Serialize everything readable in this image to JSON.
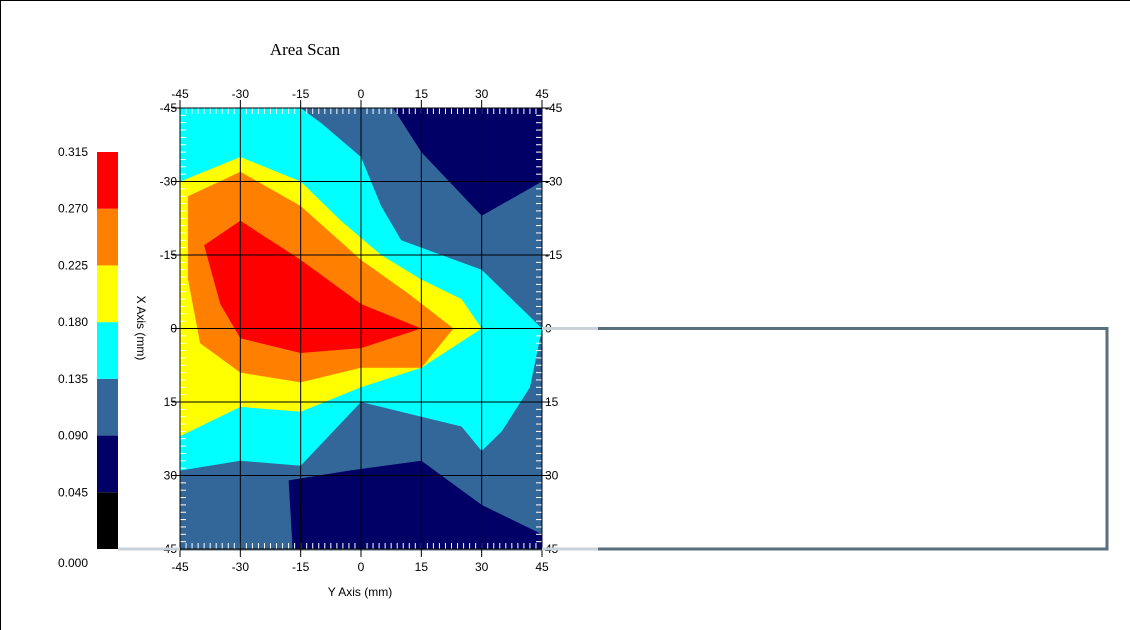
{
  "chart_data": {
    "type": "heatmap",
    "subtype": "filled-contour",
    "title": "Area Scan",
    "xlabel": "Y Axis (mm)",
    "ylabel": "X Axis (mm)",
    "x_ticks": [
      -45,
      -30,
      -15,
      0,
      15,
      30,
      45
    ],
    "y_ticks": [
      -45,
      -30,
      -15,
      0,
      15,
      30,
      45
    ],
    "x_tick_labels": [
      "-45",
      "-30",
      "-15",
      "0",
      "15",
      "30",
      "45"
    ],
    "y_tick_labels": [
      "-45",
      "-30",
      "-15",
      "0",
      "15",
      "30",
      "45"
    ],
    "xlim": [
      -45,
      45
    ],
    "ylim": [
      -45,
      45
    ],
    "y_inverted": true,
    "grid": true,
    "legend": {
      "position": "left",
      "levels": [
        "0.000",
        "0.045",
        "0.090",
        "0.135",
        "0.180",
        "0.225",
        "0.270",
        "0.315"
      ],
      "colors": [
        "#000000",
        "#000066",
        "#336699",
        "#00ffff",
        "#ffff00",
        "#ff8000",
        "#ff0000"
      ]
    },
    "bands": [
      {
        "range": [
          0.0,
          0.045
        ],
        "color": "#000000"
      },
      {
        "range": [
          0.045,
          0.09
        ],
        "color": "#000066"
      },
      {
        "range": [
          0.09,
          0.135
        ],
        "color": "#336699"
      },
      {
        "range": [
          0.135,
          0.18
        ],
        "color": "#00ffff"
      },
      {
        "range": [
          0.18,
          0.225
        ],
        "color": "#ffff00"
      },
      {
        "range": [
          0.225,
          0.27
        ],
        "color": "#ff8000"
      },
      {
        "range": [
          0.27,
          0.315
        ],
        "color": "#ff0000"
      }
    ],
    "regions": [
      {
        "level": "0.090-0.135",
        "color": "#336699",
        "polygon": [
          [
            -45,
            -45
          ],
          [
            45,
            -45
          ],
          [
            45,
            45
          ],
          [
            -45,
            45
          ]
        ]
      },
      {
        "level": "0.045-0.090",
        "color": "#000066",
        "polygon": [
          [
            8,
            -45
          ],
          [
            45,
            -45
          ],
          [
            45,
            -30
          ],
          [
            30,
            -23
          ],
          [
            15,
            -36
          ]
        ]
      },
      {
        "level": "0.045-0.090",
        "color": "#000066",
        "polygon": [
          [
            -18,
            31
          ],
          [
            -3,
            29
          ],
          [
            15,
            27
          ],
          [
            30,
            36
          ],
          [
            45,
            42
          ],
          [
            45,
            45
          ],
          [
            -17,
            45
          ]
        ]
      },
      {
        "level": "0.135-0.180",
        "color": "#00ffff",
        "polygon": [
          [
            -45,
            -45
          ],
          [
            -15,
            -45
          ],
          [
            -10,
            -42
          ],
          [
            0,
            -35
          ],
          [
            5,
            -25
          ],
          [
            10,
            -18
          ],
          [
            20,
            -15
          ],
          [
            30,
            -12
          ],
          [
            45,
            0
          ],
          [
            42,
            12
          ],
          [
            35,
            21
          ],
          [
            30,
            25
          ],
          [
            25,
            20
          ],
          [
            15,
            18
          ],
          [
            0,
            15
          ],
          [
            -15,
            28
          ],
          [
            -30,
            27
          ],
          [
            -45,
            29
          ]
        ]
      },
      {
        "level": "0.180-0.225",
        "color": "#ffff00",
        "polygon": [
          [
            -45,
            -30
          ],
          [
            -30,
            -35
          ],
          [
            -15,
            -30
          ],
          [
            -5,
            -22
          ],
          [
            5,
            -15
          ],
          [
            15,
            -10
          ],
          [
            25,
            -6
          ],
          [
            30,
            0
          ],
          [
            15,
            8
          ],
          [
            0,
            12
          ],
          [
            -15,
            17
          ],
          [
            -30,
            16
          ],
          [
            -45,
            22
          ]
        ]
      },
      {
        "level": "0.225-0.270",
        "color": "#ff8000",
        "polygon": [
          [
            -43,
            -27
          ],
          [
            -30,
            -32
          ],
          [
            -15,
            -25
          ],
          [
            0,
            -14
          ],
          [
            12,
            -7
          ],
          [
            23,
            0
          ],
          [
            15,
            8
          ],
          [
            0,
            8
          ],
          [
            -15,
            11
          ],
          [
            -30,
            9
          ],
          [
            -40,
            3
          ],
          [
            -43,
            -10
          ]
        ]
      },
      {
        "level": "0.270-0.315",
        "color": "#ff0000",
        "polygon": [
          [
            -39,
            -17
          ],
          [
            -30,
            -22
          ],
          [
            -15,
            -14
          ],
          [
            0,
            -5
          ],
          [
            15,
            0
          ],
          [
            0,
            4
          ],
          [
            -15,
            5
          ],
          [
            -30,
            2
          ],
          [
            -35,
            -5
          ]
        ]
      }
    ]
  }
}
